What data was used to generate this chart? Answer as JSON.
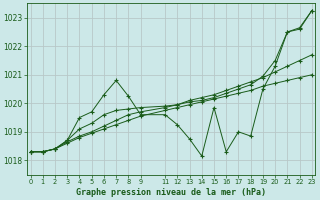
{
  "title": "Graphe pression niveau de la mer (hPa)",
  "bg_color": "#cce8e8",
  "grid_color": "#b8c8c8",
  "line_color": "#1a5c1a",
  "ylim": [
    1017.5,
    1023.5
  ],
  "yticks": [
    1018,
    1019,
    1020,
    1021,
    1022,
    1023
  ],
  "xlim": [
    -0.3,
    23.3
  ],
  "series": [
    {
      "x": [
        0,
        1,
        2,
        3,
        4,
        5,
        6,
        7,
        8,
        9,
        11,
        12,
        13,
        14,
        15,
        16,
        17,
        18,
        19,
        20,
        21,
        22,
        23
      ],
      "y": [
        1018.3,
        1018.3,
        1018.4,
        1018.6,
        1018.8,
        1018.95,
        1019.1,
        1019.25,
        1019.4,
        1019.55,
        1019.75,
        1019.85,
        1019.95,
        1020.05,
        1020.15,
        1020.25,
        1020.35,
        1020.45,
        1020.6,
        1020.7,
        1020.8,
        1020.9,
        1021.0
      ]
    },
    {
      "x": [
        0,
        1,
        2,
        3,
        4,
        5,
        6,
        7,
        8,
        9,
        11,
        12,
        13,
        14,
        15,
        16,
        17,
        18,
        19,
        20,
        21,
        22,
        23
      ],
      "y": [
        1018.3,
        1018.3,
        1018.4,
        1018.65,
        1018.85,
        1019.0,
        1019.2,
        1019.4,
        1019.6,
        1019.7,
        1019.85,
        1019.95,
        1020.1,
        1020.2,
        1020.3,
        1020.45,
        1020.6,
        1020.75,
        1020.9,
        1021.1,
        1021.3,
        1021.5,
        1021.7
      ]
    },
    {
      "x": [
        0,
        1,
        2,
        3,
        4,
        5,
        6,
        7,
        8,
        9,
        11,
        12,
        13,
        14,
        15,
        16,
        17,
        18,
        19,
        20,
        21,
        22,
        23
      ],
      "y": [
        1018.3,
        1018.3,
        1018.4,
        1018.7,
        1019.1,
        1019.3,
        1019.6,
        1019.75,
        1019.8,
        1019.85,
        1019.9,
        1019.95,
        1020.05,
        1020.1,
        1020.2,
        1020.35,
        1020.5,
        1020.65,
        1020.95,
        1021.5,
        1022.5,
        1022.65,
        1023.25
      ]
    },
    {
      "x": [
        0,
        1,
        2,
        3,
        4,
        5,
        6,
        7,
        8,
        9,
        11,
        12,
        13,
        14,
        15,
        16,
        17,
        18,
        19,
        20,
        21,
        22,
        23
      ],
      "y": [
        1018.3,
        1018.3,
        1018.4,
        1018.7,
        1019.5,
        1019.7,
        1020.3,
        1020.8,
        1020.25,
        1019.6,
        1019.6,
        1019.25,
        1018.75,
        1018.15,
        1019.85,
        1018.3,
        1019.0,
        1018.85,
        1020.5,
        1021.3,
        1022.5,
        1022.6,
        1023.25
      ]
    }
  ]
}
